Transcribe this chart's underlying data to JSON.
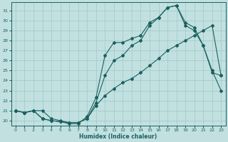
{
  "xlabel": "Humidex (Indice chaleur)",
  "background_color": "#c2e0e0",
  "grid_color": "#9ec8c8",
  "line_color": "#1a6060",
  "xlim": [
    -0.5,
    23.5
  ],
  "ylim": [
    19.5,
    31.8
  ],
  "xticks": [
    0,
    1,
    2,
    3,
    4,
    5,
    6,
    7,
    8,
    9,
    10,
    11,
    12,
    13,
    14,
    15,
    16,
    17,
    18,
    19,
    20,
    21,
    22,
    23
  ],
  "yticks": [
    20,
    21,
    22,
    23,
    24,
    25,
    26,
    27,
    28,
    29,
    30,
    31
  ],
  "line1_x": [
    0,
    1,
    2,
    3,
    4,
    5,
    6,
    7,
    8,
    9,
    10,
    11,
    12,
    13,
    14,
    15,
    16,
    17,
    18,
    19,
    20,
    21,
    22,
    23
  ],
  "line1_y": [
    21.0,
    20.8,
    21.0,
    21.0,
    20.2,
    20.0,
    19.8,
    19.8,
    20.2,
    21.8,
    24.5,
    26.0,
    26.5,
    27.5,
    28.0,
    29.5,
    30.3,
    31.3,
    31.5,
    29.8,
    29.3,
    27.5,
    24.8,
    24.5
  ],
  "line2_x": [
    0,
    1,
    2,
    3,
    4,
    5,
    6,
    7,
    8,
    9,
    10,
    11,
    12,
    13,
    14,
    15,
    16,
    17,
    18,
    19,
    20,
    21,
    22,
    23
  ],
  "line2_y": [
    21.0,
    20.8,
    21.0,
    20.2,
    20.0,
    19.9,
    19.7,
    19.7,
    20.4,
    22.3,
    26.5,
    27.8,
    27.8,
    28.2,
    28.5,
    29.8,
    30.3,
    31.3,
    31.5,
    29.5,
    29.0,
    27.5,
    25.0,
    23.0
  ],
  "line3_x": [
    0,
    1,
    2,
    3,
    4,
    5,
    6,
    7,
    8,
    9,
    10,
    11,
    12,
    13,
    14,
    15,
    16,
    17,
    18,
    19,
    20,
    21,
    22,
    23
  ],
  "line3_y": [
    21.0,
    20.8,
    21.0,
    20.2,
    20.0,
    19.9,
    19.8,
    19.8,
    20.2,
    21.5,
    22.5,
    23.2,
    23.8,
    24.2,
    24.8,
    25.5,
    26.2,
    27.0,
    27.5,
    28.0,
    28.5,
    29.0,
    29.5,
    24.5
  ]
}
